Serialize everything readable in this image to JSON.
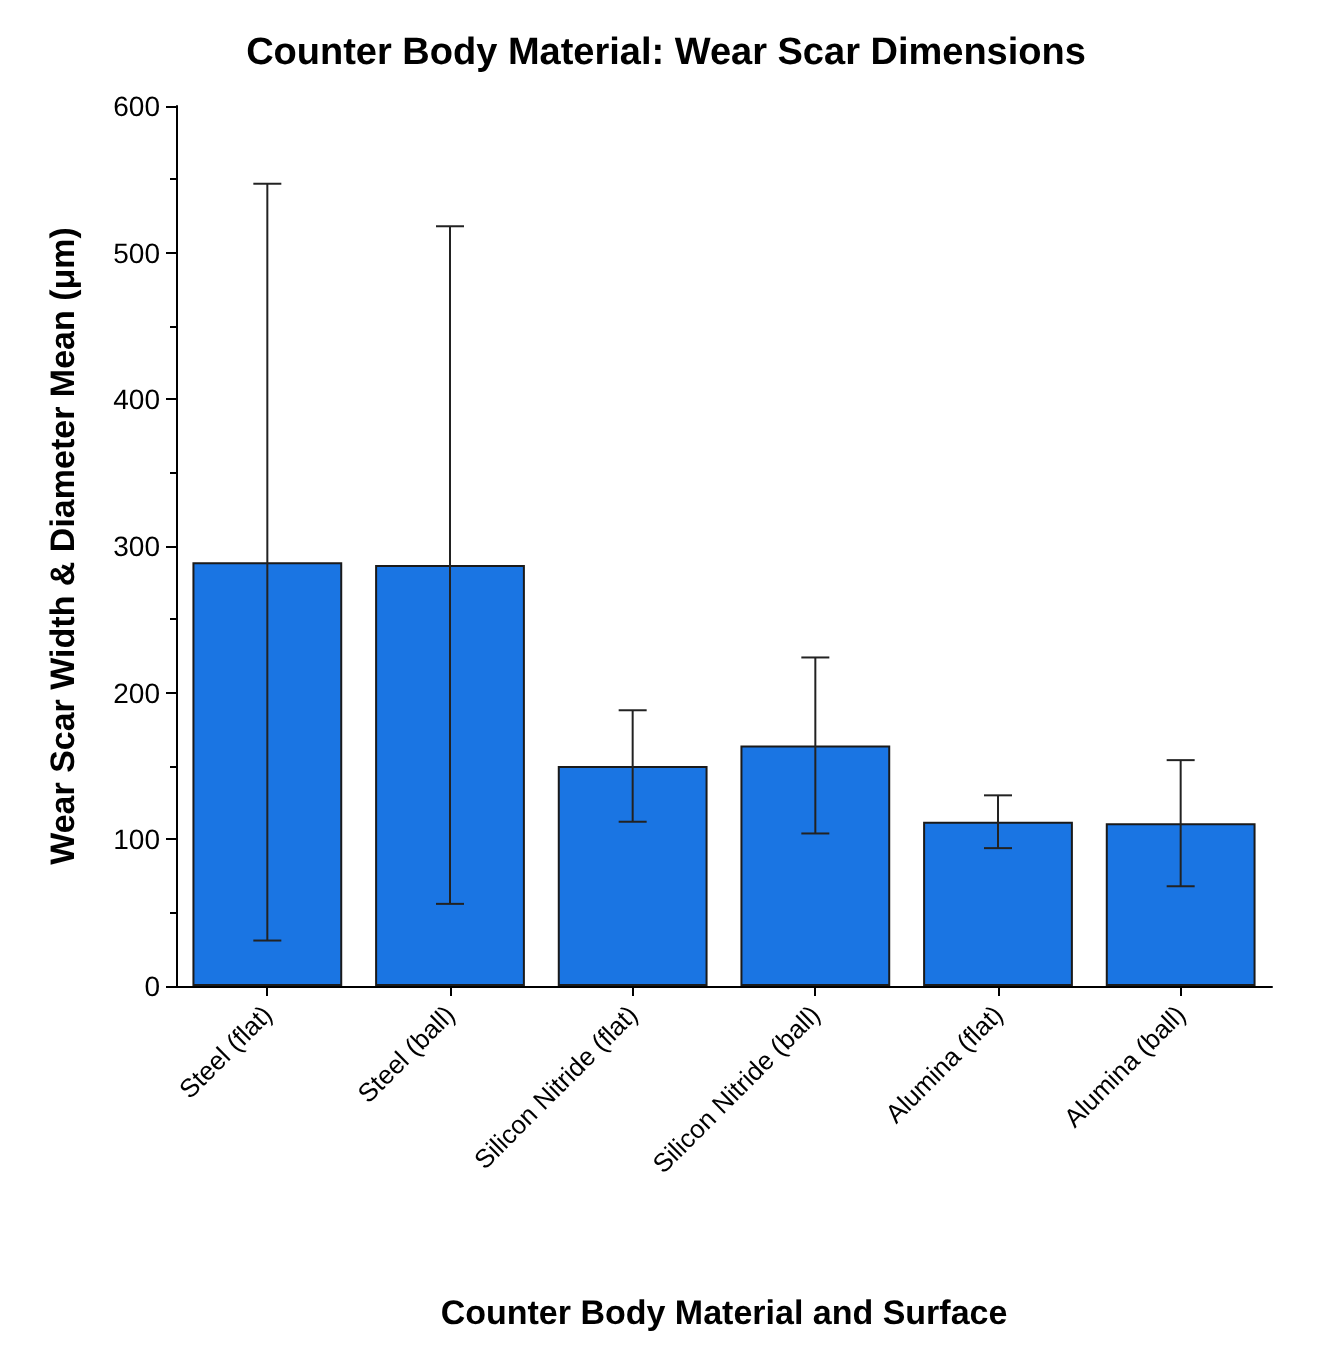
{
  "chart_data": {
    "type": "bar",
    "title": "Counter Body Material: Wear Scar Dimensions",
    "xlabel": "Counter Body Material and Surface",
    "ylabel": "Wear Scar Width & Diameter Mean (μm)",
    "categories": [
      "Steel (flat)",
      "Steel (ball)",
      "Silicon Nitride (flat)",
      "Silicon Nitride (ball)",
      "Alumina (flat)",
      "Alumina (ball)"
    ],
    "values": [
      289,
      287,
      150,
      164,
      112,
      111
    ],
    "errors": [
      258,
      231,
      38,
      60,
      18,
      43
    ],
    "color": "#1a75e3",
    "ylim": [
      0,
      600
    ],
    "yticks": [
      0,
      100,
      200,
      300,
      400,
      500,
      600
    ]
  }
}
